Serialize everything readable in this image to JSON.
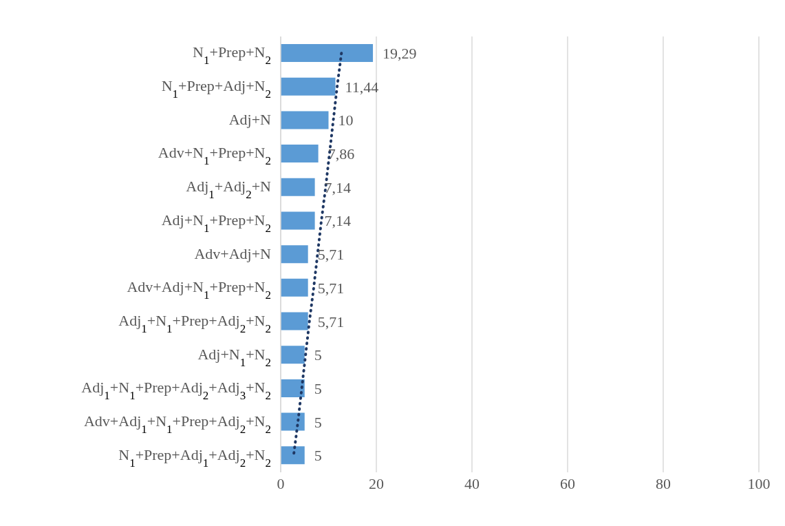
{
  "chart_data": {
    "type": "bar",
    "orientation": "horizontal",
    "categories": [
      "N$_{1}$+Prep+N$_{2}$",
      "N$_{1}$+Prep+Adj+N$_{2}$",
      "Adj+N",
      "Adv+N$_{1}$+Prep+N$_{2}$",
      "Adj$_{1}$+Adj$_{2}$+N",
      "Adj+N$_{1}$+Prep+N$_{2}$",
      "Adv+Adj+N",
      "Adv+Adj+N$_{1}$+Prep+N$_{2}$",
      "Adj$_{1}$+N$_{1}$+Prep+Adj$_{2}$+N$_{2}$",
      "Adj+N$_{1}$+N$_{2}$",
      "Adj$_{1}$+N$_{1}$+Prep+Adj$_{2}$+Adj$_{3}$+N$_{2}$",
      "Adv+Adj$_{1}$+N$_{1}$+Prep+Adj$_{2}$+N$_{2}$",
      "N$_{1}$+Prep+Adj$_{1}$+Adj$_{2}$+N$_{2}$"
    ],
    "series": [
      {
        "color": "#5b9bd5",
        "values": [
          19.29,
          11.44,
          10,
          7.86,
          7.14,
          7.14,
          5.71,
          5.71,
          5.71,
          5,
          5,
          5,
          5
        ],
        "value_labels": [
          "19,29",
          "11,44",
          "10",
          "7,86",
          "7,14",
          "7,14",
          "5,71",
          "5,71",
          "5,71",
          "5",
          "5",
          "5",
          "5"
        ]
      },
      {
        "type": "line",
        "color": "#1f3864",
        "line_style": "dotted",
        "marker": "none",
        "values": [
          12.7,
          11.8,
          11.0,
          10.2,
          9.4,
          8.5,
          7.7,
          6.9,
          6.0,
          5.2,
          4.4,
          3.6,
          2.7
        ]
      }
    ],
    "xlim": [
      0,
      100
    ],
    "xticks": [
      0,
      20,
      40,
      60,
      80,
      100
    ],
    "grid": "x"
  }
}
